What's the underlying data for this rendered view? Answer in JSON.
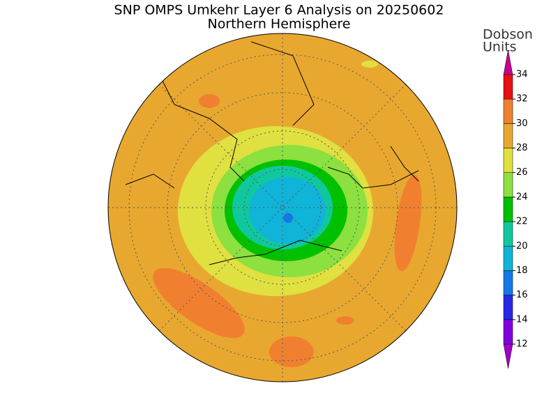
{
  "title": "SNP OMPS Umkehr Layer 6 Analysis on 20250602",
  "subtitle": "Northern Hemisphere",
  "colorbar": {
    "label": [
      "Dobson",
      "Units"
    ],
    "levels": [
      12,
      14,
      16,
      18,
      20,
      22,
      24,
      26,
      28,
      30,
      32,
      34
    ],
    "colors": [
      "#a000c8",
      "#8000e0",
      "#2828e8",
      "#1478e8",
      "#10b4d8",
      "#10c8a0",
      "#00c000",
      "#8ce040",
      "#e0e040",
      "#e8a830",
      "#f08030",
      "#e81010",
      "#c8008c"
    ]
  }
}
